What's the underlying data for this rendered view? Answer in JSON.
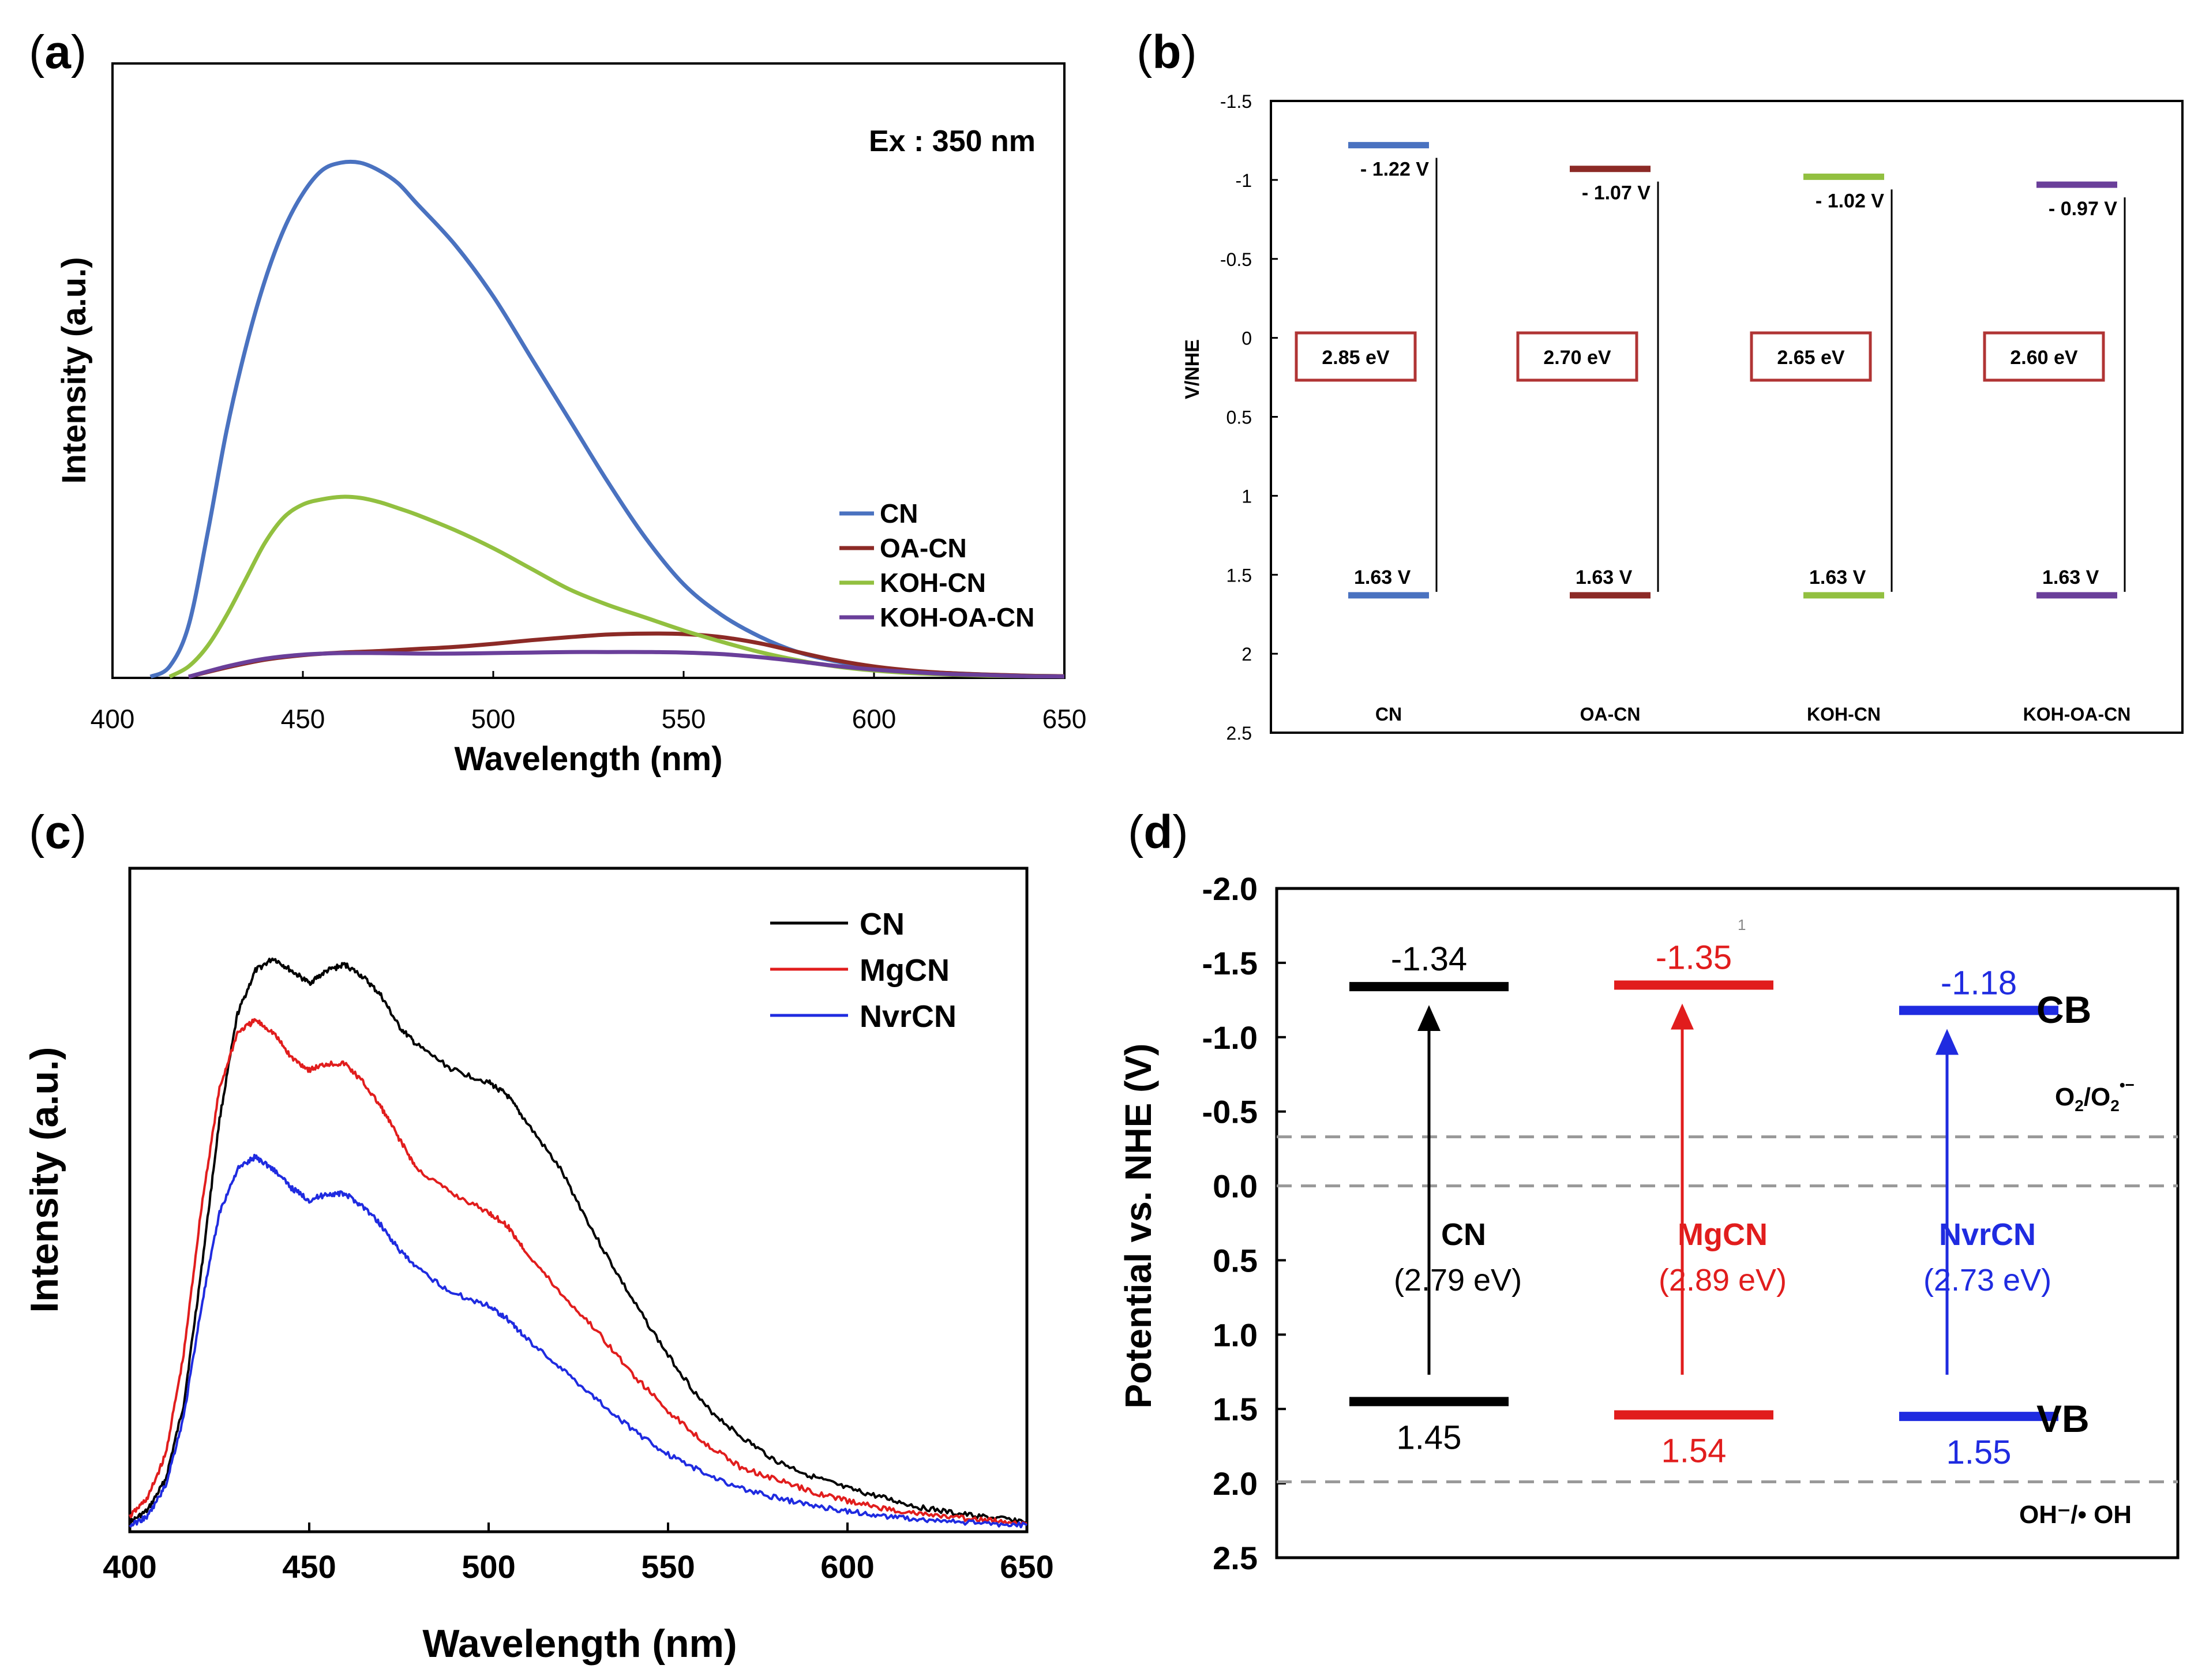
{
  "panels": {
    "a": {
      "label": "(a)",
      "letter": "a"
    },
    "b": {
      "label": "(b)",
      "letter": "b"
    },
    "c": {
      "label": "(c)",
      "letter": "c"
    },
    "d": {
      "label": "(d)",
      "letter": "d"
    }
  },
  "colors": {
    "cn_blue": "#4a72c0",
    "oa_red": "#8c2a26",
    "koh_green": "#92c040",
    "kohoa_purple": "#6a3f9a",
    "box_red": "#b03434",
    "black": "#000000",
    "red": "#e11d1d",
    "blue": "#1f2be0",
    "dash_gray": "#999999"
  },
  "chart_data": [
    {
      "id": "a",
      "type": "line",
      "title": "",
      "annotation": "Ex : 350 nm",
      "xlabel": "Wavelength (nm)",
      "ylabel": "Intensity (a.u.)",
      "xlim": [
        400,
        650
      ],
      "ylim": [
        0,
        1.05
      ],
      "xticks": [
        400,
        450,
        500,
        550,
        600,
        650
      ],
      "legend_position": "center-right",
      "series": [
        {
          "name": "CN",
          "color": "#4a72c0",
          "x": [
            410,
            415,
            420,
            425,
            430,
            435,
            440,
            445,
            450,
            455,
            460,
            465,
            470,
            475,
            480,
            490,
            500,
            510,
            520,
            530,
            540,
            550,
            560,
            570,
            580,
            590,
            600,
            610,
            620,
            630,
            640,
            650
          ],
          "y": [
            0,
            0.02,
            0.1,
            0.28,
            0.48,
            0.64,
            0.77,
            0.87,
            0.94,
            0.985,
            1.0,
            1.0,
            0.985,
            0.96,
            0.92,
            0.84,
            0.74,
            0.62,
            0.5,
            0.38,
            0.27,
            0.18,
            0.12,
            0.078,
            0.048,
            0.03,
            0.018,
            0.011,
            0.007,
            0.004,
            0.002,
            0.001
          ]
        },
        {
          "name": "OA-CN",
          "color": "#8c2a26",
          "x": [
            420,
            430,
            440,
            450,
            460,
            470,
            480,
            490,
            500,
            510,
            520,
            530,
            540,
            550,
            560,
            570,
            580,
            590,
            600,
            610,
            620,
            630,
            640,
            650
          ],
          "y": [
            0,
            0.018,
            0.033,
            0.042,
            0.047,
            0.05,
            0.054,
            0.058,
            0.064,
            0.071,
            0.077,
            0.082,
            0.084,
            0.083,
            0.077,
            0.065,
            0.048,
            0.032,
            0.02,
            0.012,
            0.007,
            0.004,
            0.002,
            0.001
          ]
        },
        {
          "name": "KOH-CN",
          "color": "#92c040",
          "x": [
            415,
            420,
            425,
            430,
            435,
            440,
            445,
            450,
            455,
            460,
            465,
            470,
            475,
            480,
            490,
            500,
            510,
            520,
            530,
            540,
            550,
            560,
            570,
            580,
            590,
            600,
            610,
            620,
            630,
            640,
            650
          ],
          "y": [
            0,
            0.02,
            0.06,
            0.12,
            0.19,
            0.26,
            0.31,
            0.335,
            0.345,
            0.35,
            0.348,
            0.34,
            0.328,
            0.315,
            0.285,
            0.25,
            0.21,
            0.17,
            0.14,
            0.115,
            0.09,
            0.068,
            0.048,
            0.032,
            0.02,
            0.012,
            0.007,
            0.004,
            0.002,
            0.001,
            0.0005
          ]
        },
        {
          "name": "KOH-OA-CN",
          "color": "#6a3f9a",
          "x": [
            420,
            430,
            440,
            450,
            460,
            470,
            480,
            490,
            500,
            510,
            520,
            530,
            540,
            550,
            560,
            570,
            580,
            590,
            600,
            610,
            620,
            630,
            640,
            650
          ],
          "y": [
            0,
            0.02,
            0.035,
            0.043,
            0.046,
            0.046,
            0.045,
            0.045,
            0.046,
            0.047,
            0.048,
            0.048,
            0.048,
            0.047,
            0.044,
            0.038,
            0.03,
            0.021,
            0.014,
            0.009,
            0.005,
            0.003,
            0.001,
            0.0005
          ]
        }
      ]
    },
    {
      "id": "b",
      "type": "band-diagram",
      "ylabel": "V/NHE",
      "ylim": [
        -1.5,
        2.5
      ],
      "yticks": [
        -1.5,
        -1,
        -0.5,
        0,
        0.5,
        1,
        1.5,
        2,
        2.5
      ],
      "ytick_labels": [
        "-1.5",
        "-1",
        "-0.5",
        "0",
        "0.5",
        "1",
        "1.5",
        "2",
        "2.5"
      ],
      "bands": [
        {
          "name": "CN",
          "cb": -1.22,
          "vb": 1.63,
          "cb_label": "- 1.22 V",
          "vb_label": "1.63 V",
          "gap_label": "2.85 eV",
          "color": "#4a72c0"
        },
        {
          "name": "OA-CN",
          "cb": -1.07,
          "vb": 1.63,
          "cb_label": "- 1.07 V",
          "vb_label": "1.63 V",
          "gap_label": "2.70 eV",
          "color": "#8c2a26"
        },
        {
          "name": "KOH-CN",
          "cb": -1.02,
          "vb": 1.63,
          "cb_label": "- 1.02 V",
          "vb_label": "1.63 V",
          "gap_label": "2.65 eV",
          "color": "#92c040"
        },
        {
          "name": "KOH-OA-CN",
          "cb": -0.97,
          "vb": 1.63,
          "cb_label": "- 0.97 V",
          "vb_label": "1.63 V",
          "gap_label": "2.60 eV",
          "color": "#6a3f9a"
        }
      ]
    },
    {
      "id": "c",
      "type": "line",
      "title": "",
      "xlabel": "Wavelength (nm)",
      "ylabel": "Intensity (a.u.)",
      "xlim": [
        400,
        650
      ],
      "ylim": [
        0,
        1.0
      ],
      "xticks": [
        400,
        450,
        500,
        550,
        600,
        650
      ],
      "legend_position": "top-right",
      "series": [
        {
          "name": "CN",
          "color": "#000000",
          "x": [
            400,
            405,
            410,
            415,
            420,
            425,
            430,
            435,
            440,
            445,
            450,
            455,
            460,
            465,
            470,
            475,
            480,
            490,
            500,
            505,
            510,
            520,
            530,
            540,
            550,
            560,
            570,
            580,
            590,
            600,
            610,
            620,
            630,
            640,
            650
          ],
          "y": [
            0.01,
            0.03,
            0.08,
            0.2,
            0.42,
            0.66,
            0.83,
            0.9,
            0.92,
            0.9,
            0.88,
            0.9,
            0.91,
            0.89,
            0.86,
            0.81,
            0.78,
            0.74,
            0.72,
            0.7,
            0.66,
            0.58,
            0.47,
            0.37,
            0.28,
            0.2,
            0.15,
            0.11,
            0.085,
            0.065,
            0.05,
            0.035,
            0.025,
            0.018,
            0.012
          ]
        },
        {
          "name": "MgCN",
          "color": "#e11d1d",
          "x": [
            400,
            405,
            410,
            415,
            420,
            425,
            430,
            435,
            440,
            445,
            450,
            455,
            460,
            465,
            470,
            475,
            480,
            490,
            500,
            505,
            510,
            520,
            530,
            540,
            550,
            560,
            570,
            580,
            590,
            600,
            610,
            620,
            630,
            640,
            650
          ],
          "y": [
            0.02,
            0.05,
            0.12,
            0.28,
            0.52,
            0.71,
            0.8,
            0.82,
            0.8,
            0.76,
            0.74,
            0.75,
            0.75,
            0.72,
            0.68,
            0.63,
            0.58,
            0.54,
            0.51,
            0.49,
            0.45,
            0.38,
            0.32,
            0.25,
            0.19,
            0.14,
            0.1,
            0.08,
            0.06,
            0.045,
            0.033,
            0.024,
            0.018,
            0.013,
            0.009
          ]
        },
        {
          "name": "NvrCN",
          "color": "#1f2be0",
          "x": [
            400,
            405,
            410,
            415,
            420,
            425,
            430,
            435,
            440,
            445,
            450,
            455,
            460,
            465,
            470,
            475,
            480,
            490,
            500,
            505,
            510,
            520,
            530,
            540,
            550,
            560,
            570,
            580,
            590,
            600,
            610,
            620,
            630,
            640,
            650
          ],
          "y": [
            0.005,
            0.02,
            0.07,
            0.18,
            0.36,
            0.51,
            0.58,
            0.6,
            0.58,
            0.55,
            0.53,
            0.54,
            0.54,
            0.52,
            0.49,
            0.45,
            0.42,
            0.38,
            0.36,
            0.34,
            0.31,
            0.26,
            0.21,
            0.16,
            0.12,
            0.09,
            0.066,
            0.05,
            0.038,
            0.028,
            0.021,
            0.015,
            0.011,
            0.008,
            0.006
          ]
        }
      ]
    },
    {
      "id": "d",
      "type": "band-diagram",
      "ylabel": "Potential vs. NHE (V)",
      "ylim": [
        -2.0,
        2.5
      ],
      "yticks": [
        -2.0,
        -1.5,
        -1.0,
        -0.5,
        0.0,
        0.5,
        1.0,
        1.5,
        2.0,
        2.5
      ],
      "ytick_labels": [
        "-2.0",
        "-1.5",
        "-1.0",
        "-0.5",
        "0.0",
        "0.5",
        "1.0",
        "1.5",
        "2.0",
        "2.5"
      ],
      "reference_lines": [
        {
          "value": -0.33,
          "label_main": "O",
          "label_sub1": "2",
          "label_mid": "/O",
          "label_sub2": "2",
          "label_sup": "•−"
        },
        {
          "value": 0.0
        },
        {
          "value": 1.99,
          "label": "OH⁻/• OH"
        }
      ],
      "band_edge_labels": {
        "cb": "CB",
        "vb": "VB"
      },
      "stray_mark": "1",
      "bands": [
        {
          "name": "CN",
          "cb": -1.34,
          "vb": 1.45,
          "cb_label": "-1.34",
          "vb_label": "1.45",
          "gap_label": "(2.79 eV)",
          "color": "#000000"
        },
        {
          "name": "MgCN",
          "cb": -1.35,
          "vb": 1.54,
          "cb_label": "-1.35",
          "vb_label": "1.54",
          "gap_label": "(2.89 eV)",
          "color": "#e11d1d"
        },
        {
          "name": "NvrCN",
          "cb": -1.18,
          "vb": 1.55,
          "cb_label": "-1.18",
          "vb_label": "1.55",
          "gap_label": "(2.73 eV)",
          "color": "#1f2be0"
        }
      ]
    }
  ]
}
